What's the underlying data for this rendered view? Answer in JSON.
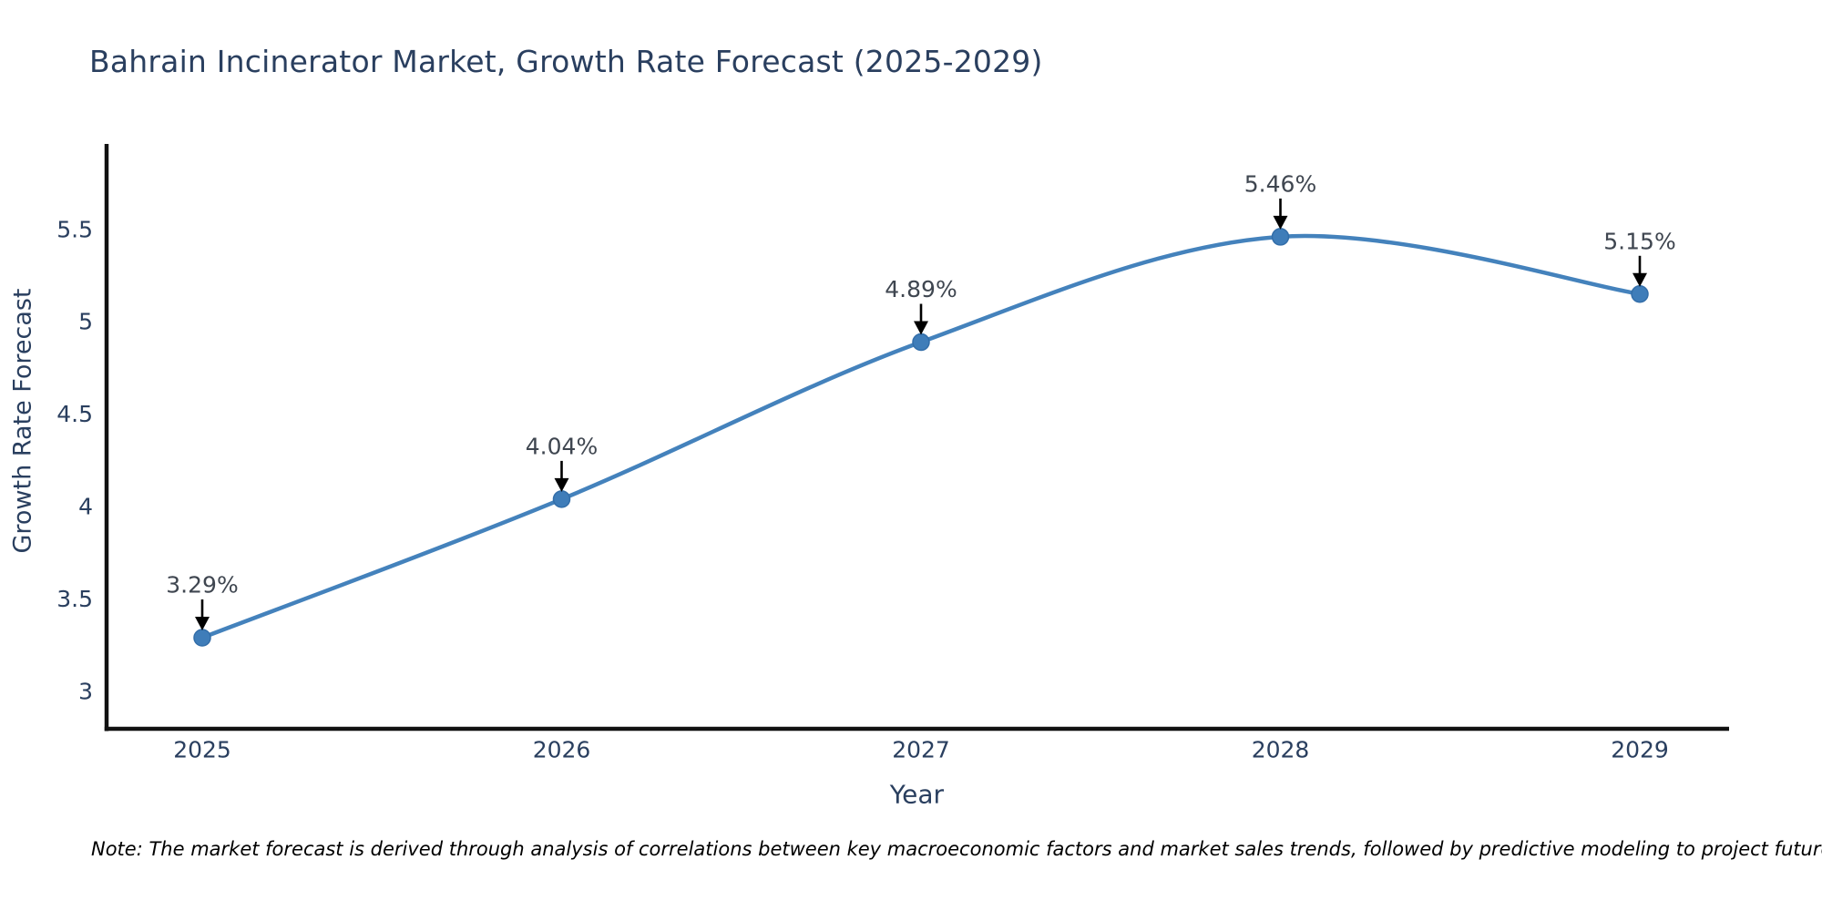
{
  "chart_data": {
    "type": "line",
    "title": "Bahrain Incinerator Market, Growth Rate Forecast (2025-2029)",
    "x": [
      2025,
      2026,
      2027,
      2028,
      2029
    ],
    "series": [
      {
        "name": "Growth Rate Forecast",
        "values": [
          3.29,
          4.04,
          4.89,
          5.46,
          5.15
        ]
      }
    ],
    "point_labels": [
      "3.29%",
      "4.04%",
      "4.89%",
      "5.46%",
      "5.15%"
    ],
    "xlabel": "Year",
    "ylabel": "Growth Rate Forecast",
    "xtick_labels": [
      "2025",
      "2026",
      "2027",
      "2028",
      "2029"
    ],
    "ytick_values": [
      3,
      3.5,
      4,
      4.5,
      5,
      5.5
    ],
    "ytick_labels": [
      "3",
      "3.5",
      "4",
      "4.5",
      "5",
      "5.5"
    ],
    "ylim": [
      2.8,
      6.0
    ],
    "grid": false,
    "legend": "none",
    "line_shape": "spline",
    "annotation_style": "value label with downward black arrow above each data point"
  },
  "note": "Note: The market forecast is derived through analysis of correlations between key macroeconomic factors and market sales trends, followed by predictive modeling to project future sales",
  "colors": {
    "accent_line": "#4482bc",
    "marker_fill": "#3f7db9",
    "marker_edge": "#336ea9",
    "text_dark": "#2a3f5f",
    "annotation_text": "#3f4650",
    "axis_line": "#111111",
    "arrow": "#000000",
    "note_text": "#000000",
    "background": "#ffffff"
  }
}
